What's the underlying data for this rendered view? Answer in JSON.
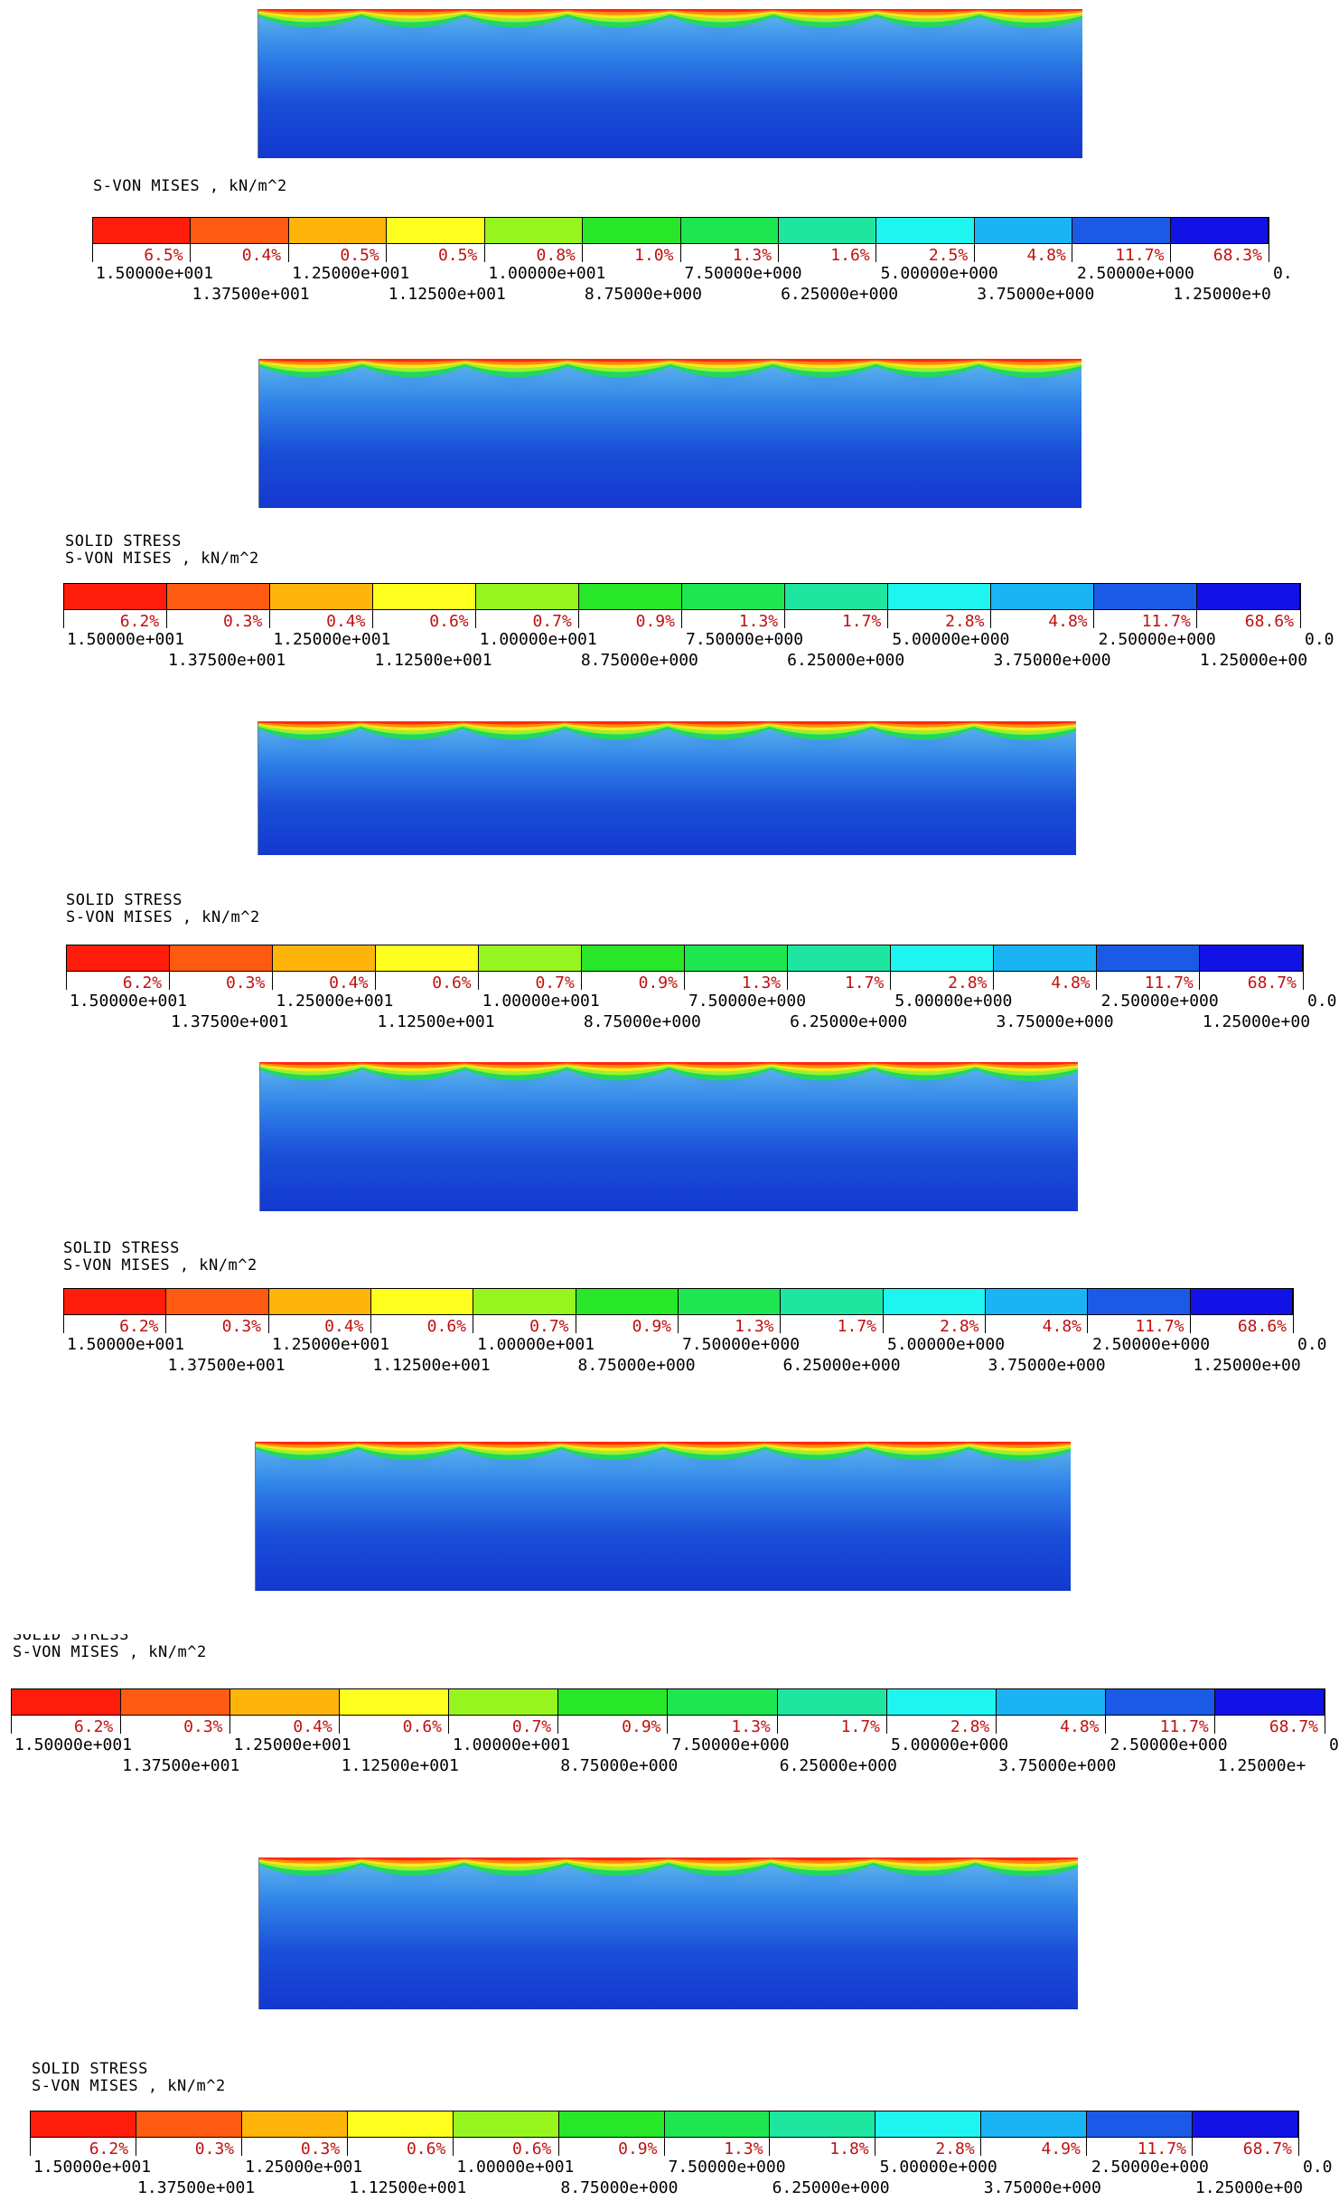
{
  "legend_colors": [
    "#ff1c0a",
    "#ff5a12",
    "#ffb40a",
    "#ffff1e",
    "#96f51e",
    "#28e628",
    "#1ee650",
    "#1ee6a0",
    "#1ef5f0",
    "#1ab4f5",
    "#1a5ae6",
    "#1212e6"
  ],
  "header_top": "SOLID STRESS",
  "header_quantity": "S-VON MISES , kN/m^2",
  "panels": [
    {
      "header_line1": "",
      "header_line2": "S-VON MISES , kN/m^2",
      "percents": [
        "6.5%",
        "0.4%",
        "0.5%",
        "0.5%",
        "0.8%",
        "1.0%",
        "1.3%",
        "1.6%",
        "2.5%",
        "4.8%",
        "11.7%",
        "68.3%"
      ],
      "labels_upper": [
        "1.50000e+001",
        "1.25000e+001",
        "1.00000e+001",
        "7.50000e+000",
        "5.00000e+000",
        "2.50000e+000",
        "0."
      ],
      "labels_lower": [
        "1.37500e+001",
        "1.12500e+001",
        "8.75000e+000",
        "6.25000e+000",
        "3.75000e+000",
        "1.25000e+0"
      ]
    },
    {
      "header_line1": "SOLID STRESS",
      "header_line2": "S-VON MISES , kN/m^2",
      "percents": [
        "6.2%",
        "0.3%",
        "0.4%",
        "0.6%",
        "0.7%",
        "0.9%",
        "1.3%",
        "1.7%",
        "2.8%",
        "4.8%",
        "11.7%",
        "68.6%"
      ],
      "labels_upper": [
        "1.50000e+001",
        "1.25000e+001",
        "1.00000e+001",
        "7.50000e+000",
        "5.00000e+000",
        "2.50000e+000",
        "0.0"
      ],
      "labels_lower": [
        "1.37500e+001",
        "1.12500e+001",
        "8.75000e+000",
        "6.25000e+000",
        "3.75000e+000",
        "1.25000e+00"
      ]
    },
    {
      "header_line1": "SOLID STRESS",
      "header_line2": "S-VON MISES , kN/m^2",
      "percents": [
        "6.2%",
        "0.3%",
        "0.4%",
        "0.6%",
        "0.7%",
        "0.9%",
        "1.3%",
        "1.7%",
        "2.8%",
        "4.8%",
        "11.7%",
        "68.7%"
      ],
      "labels_upper": [
        "1.50000e+001",
        "1.25000e+001",
        "1.00000e+001",
        "7.50000e+000",
        "5.00000e+000",
        "2.50000e+000",
        "0.0"
      ],
      "labels_lower": [
        "1.37500e+001",
        "1.12500e+001",
        "8.75000e+000",
        "6.25000e+000",
        "3.75000e+000",
        "1.25000e+00"
      ]
    },
    {
      "header_line1": "SOLID STRESS",
      "header_line2": "S-VON MISES , kN/m^2",
      "percents": [
        "6.2%",
        "0.3%",
        "0.4%",
        "0.6%",
        "0.7%",
        "0.9%",
        "1.3%",
        "1.7%",
        "2.8%",
        "4.8%",
        "11.7%",
        "68.6%"
      ],
      "labels_upper": [
        "1.50000e+001",
        "1.25000e+001",
        "1.00000e+001",
        "7.50000e+000",
        "5.00000e+000",
        "2.50000e+000",
        "0.0"
      ],
      "labels_lower": [
        "1.37500e+001",
        "1.12500e+001",
        "8.75000e+000",
        "6.25000e+000",
        "3.75000e+000",
        "1.25000e+00"
      ]
    },
    {
      "header_line1": "SOLID STRESS",
      "header_line2": "S-VON MISES , kN/m^2",
      "percents": [
        "6.2%",
        "0.3%",
        "0.4%",
        "0.6%",
        "0.7%",
        "0.9%",
        "1.3%",
        "1.7%",
        "2.8%",
        "4.8%",
        "11.7%",
        "68.7%"
      ],
      "labels_upper": [
        "1.50000e+001",
        "1.25000e+001",
        "1.00000e+001",
        "7.50000e+000",
        "5.00000e+000",
        "2.50000e+000",
        "0"
      ],
      "labels_lower": [
        "1.37500e+001",
        "1.12500e+001",
        "8.75000e+000",
        "6.25000e+000",
        "3.75000e+000",
        "1.25000e+"
      ]
    },
    {
      "header_line1": "SOLID STRESS",
      "header_line2": "S-VON MISES , kN/m^2",
      "percents": [
        "6.2%",
        "0.3%",
        "0.3%",
        "0.6%",
        "0.6%",
        "0.9%",
        "1.3%",
        "1.8%",
        "2.8%",
        "4.9%",
        "11.7%",
        "68.7%"
      ],
      "labels_upper": [
        "1.50000e+001",
        "1.25000e+001",
        "1.00000e+001",
        "7.50000e+000",
        "5.00000e+000",
        "2.50000e+000",
        "0.0"
      ],
      "labels_lower": [
        "1.37500e+001",
        "1.12500e+001",
        "8.75000e+000",
        "6.25000e+000",
        "3.75000e+000",
        "1.25000e+00"
      ]
    }
  ]
}
